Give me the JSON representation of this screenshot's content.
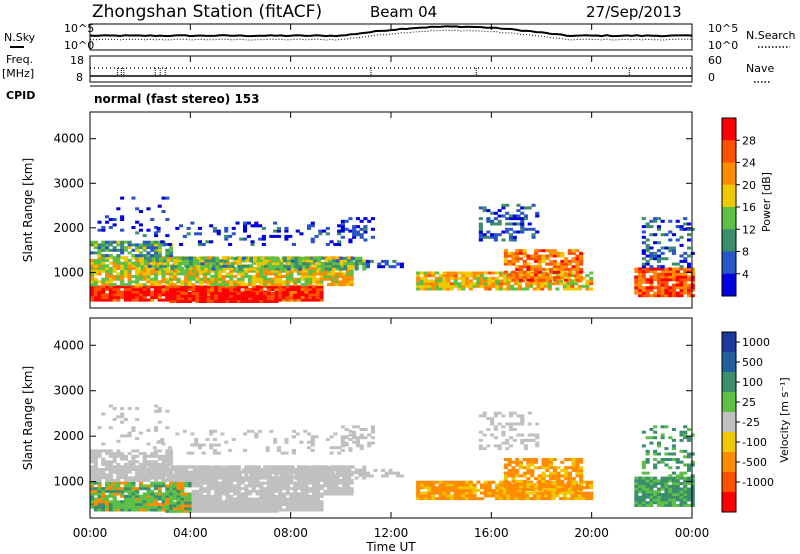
{
  "header": {
    "station": "Zhongshan Station (fitACF)",
    "beam": "Beam 04",
    "date": "27/Sep/2013"
  },
  "noise_panel": {
    "left_label": "N.Sky",
    "right_label": "N.Search",
    "left_ticks": [
      "10^5",
      "10^0"
    ],
    "right_ticks": [
      "10^5",
      "10^0"
    ]
  },
  "freq_panel": {
    "left_label_1": "Freq.",
    "left_label_2": "[MHz]",
    "right_label": "Nave",
    "left_ticks": [
      "18",
      "8"
    ],
    "right_ticks": [
      "60",
      "0"
    ]
  },
  "cpid": {
    "label": "CPID",
    "value": "normal (fast stereo) 153"
  },
  "colors": {
    "power_scale": [
      "#0000e0",
      "#2a55c8",
      "#3c8c6e",
      "#5cbf46",
      "#f0c800",
      "#ff8c00",
      "#ff5000",
      "#ff0000"
    ],
    "velocity_scale": [
      "#1a3a9c",
      "#2060a0",
      "#3c8c6e",
      "#5cbf46",
      "#c0c0c0",
      "#f0c800",
      "#ff8c00",
      "#ff5000",
      "#ff0000"
    ]
  },
  "chart_data": [
    {
      "type": "heatmap",
      "name": "power",
      "ylabel": "Slant Range [km]",
      "y_ticks": [
        "1000",
        "2000",
        "3000",
        "4000"
      ],
      "ylim": [
        200,
        4600
      ],
      "xlim_hours": [
        0,
        24
      ],
      "colorbar_label": "Power [dB]",
      "colorbar_ticks": [
        "4",
        "8",
        "12",
        "16",
        "20",
        "24",
        "28"
      ],
      "colorbar_range": [
        0,
        32
      ]
    },
    {
      "type": "heatmap",
      "name": "velocity",
      "ylabel": "Slant Range [km]",
      "y_ticks": [
        "1000",
        "2000",
        "3000",
        "4000"
      ],
      "ylim": [
        200,
        4600
      ],
      "xlim_hours": [
        0,
        24
      ],
      "colorbar_label": "Velocity [m s⁻¹]",
      "colorbar_ticks": [
        "1000",
        "500",
        "100",
        "25",
        "-25",
        "-100",
        "-500",
        "-1000"
      ]
    }
  ],
  "x_axis": {
    "label": "Time UT",
    "ticks": [
      "00:00",
      "04:00",
      "08:00",
      "12:00",
      "16:00",
      "20:00",
      "00:00"
    ]
  }
}
